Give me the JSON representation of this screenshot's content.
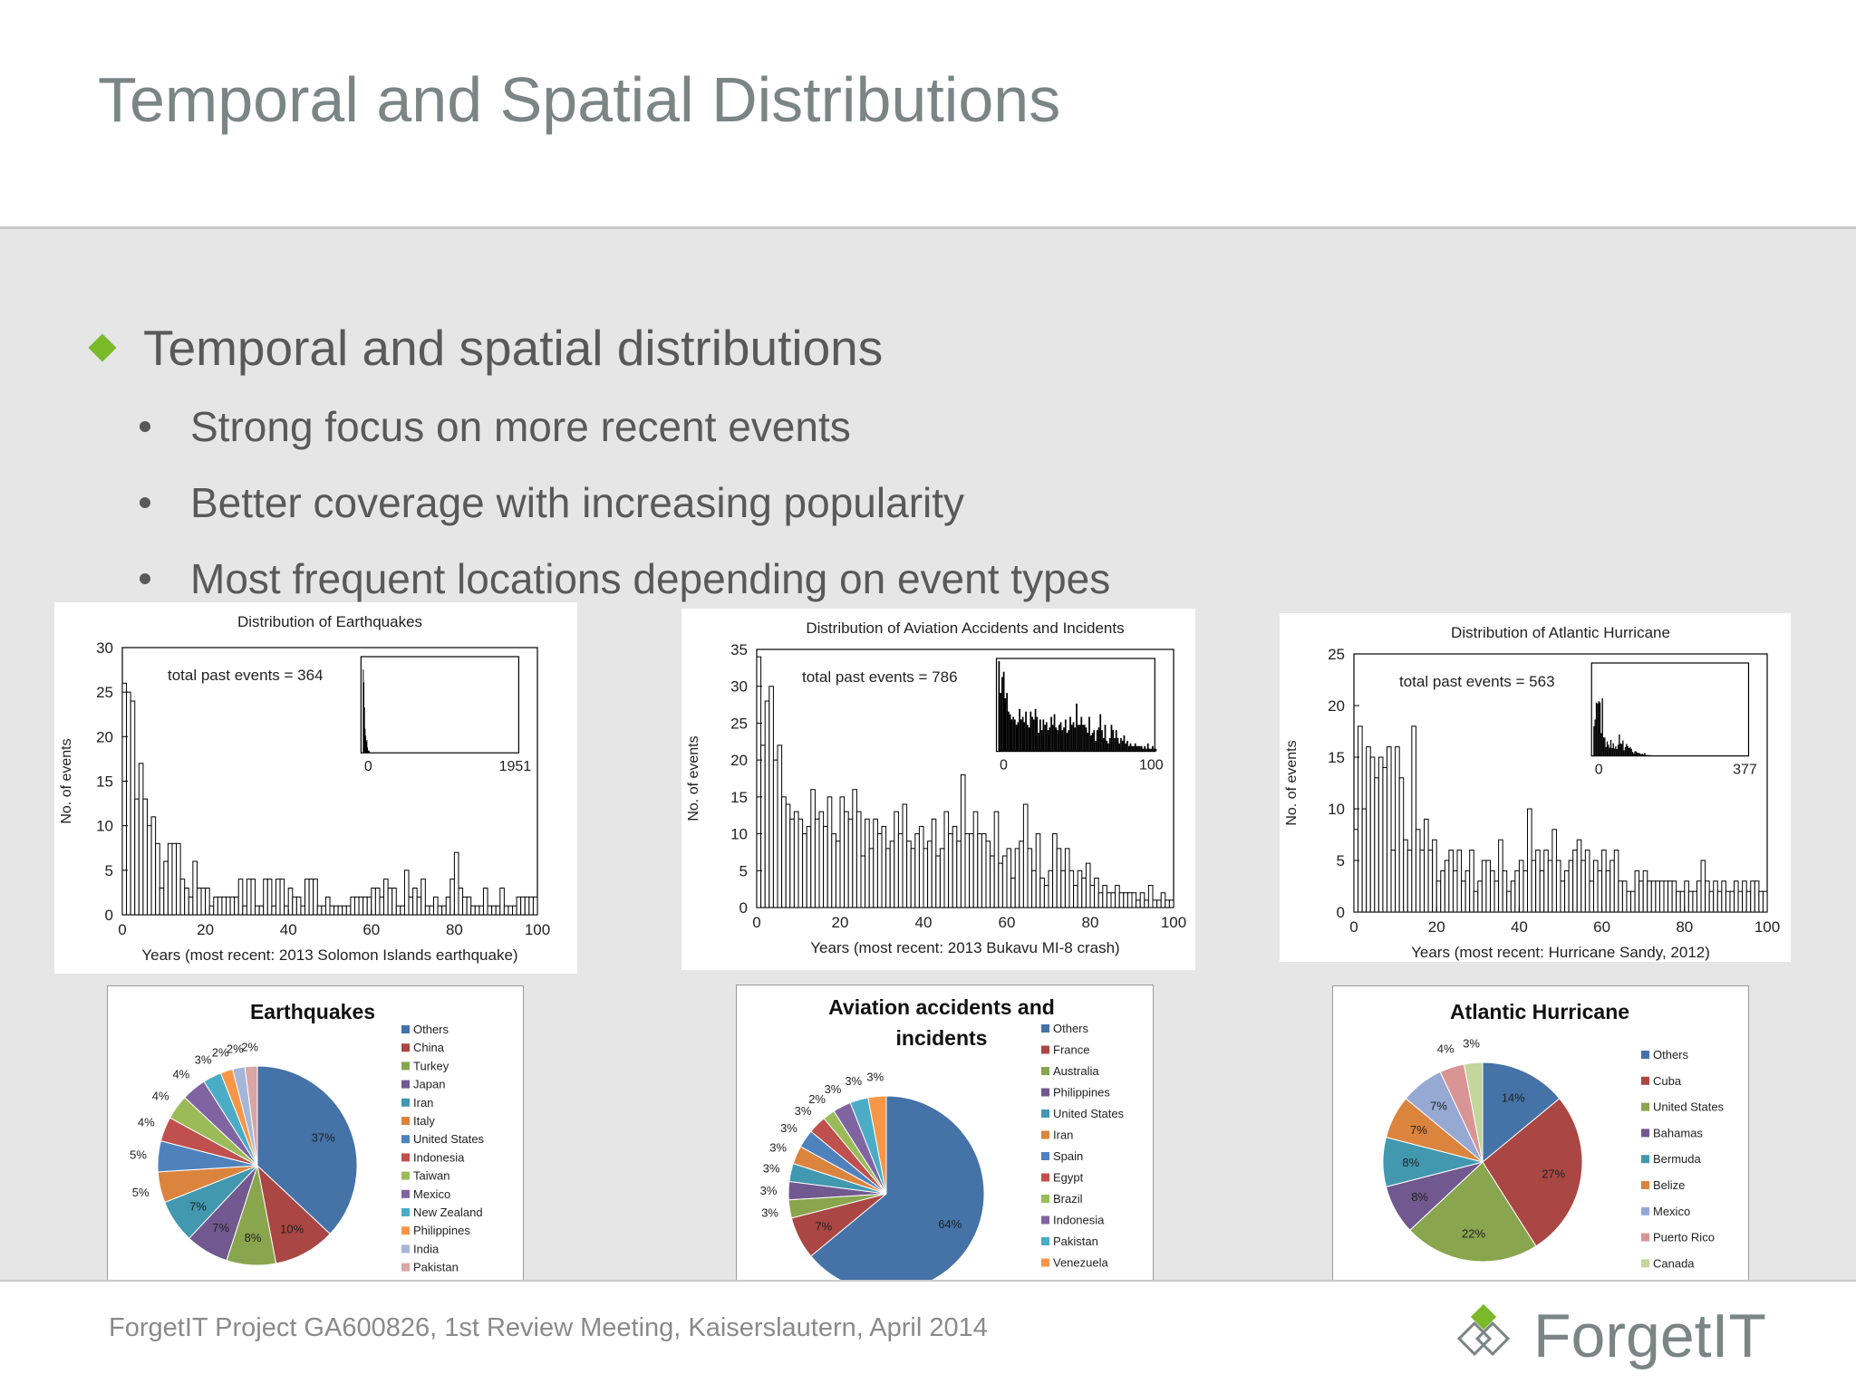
{
  "slide": {
    "title": "Temporal and Spatial Distributions",
    "bullet": "Temporal and spatial distributions",
    "subbullets": [
      "Strong focus on more recent events",
      "Better coverage with increasing popularity",
      "Most frequent locations depending on event types"
    ],
    "footer": "ForgetIT Project GA600826, 1st Review Meeting, Kaiserslautern, April 2014",
    "logo": "ForgetIT",
    "colors": {
      "accent": "#7ab929",
      "title": "#7a8584",
      "text": "#595959"
    }
  },
  "chart_data": [
    {
      "type": "bar",
      "title": "Distribution of Earthquakes",
      "xlabel": "Years (most recent: 2013 Solomon Islands earthquake)",
      "ylabel": "No. of events",
      "annotation": "total past events = 364",
      "xlim": [
        0,
        100
      ],
      "ylim": [
        0,
        30
      ],
      "xticks": [
        "0",
        "20",
        "40",
        "60",
        "80",
        "100"
      ],
      "yticks": [
        "0",
        "5",
        "10",
        "15",
        "20",
        "25",
        "30"
      ],
      "inset": {
        "xticks": [
          "0",
          "1951"
        ]
      },
      "values": [
        26,
        25,
        24,
        13,
        17,
        13,
        10,
        11,
        8,
        3,
        6,
        8,
        8,
        8,
        4,
        3,
        2,
        6,
        3,
        3,
        3,
        1,
        2,
        2,
        2,
        2,
        2,
        2,
        4,
        1,
        4,
        4,
        1,
        1,
        4,
        4,
        1,
        4,
        4,
        1,
        3,
        2,
        2,
        1,
        4,
        4,
        4,
        1,
        1,
        2,
        1,
        1,
        1,
        1,
        1,
        2,
        2,
        2,
        2,
        2,
        3,
        3,
        2,
        4,
        3,
        3,
        1,
        1,
        5,
        2,
        3,
        2,
        4,
        1,
        1,
        2,
        1,
        1,
        2,
        4,
        7,
        3,
        2,
        2,
        1,
        1,
        1,
        3,
        1,
        1,
        1,
        3,
        1,
        1,
        1,
        2,
        2,
        2,
        2,
        2
      ]
    },
    {
      "type": "bar",
      "title": "Distribution of Aviation Accidents and Incidents",
      "xlabel": "Years (most recent: 2013 Bukavu MI-8 crash)",
      "ylabel": "No. of events",
      "annotation": "total past events = 786",
      "xlim": [
        0,
        100
      ],
      "ylim": [
        0,
        35
      ],
      "xticks": [
        "0",
        "20",
        "40",
        "60",
        "80",
        "100"
      ],
      "yticks": [
        "0",
        "5",
        "10",
        "15",
        "20",
        "25",
        "30",
        "35"
      ],
      "inset": {
        "xticks": [
          "0",
          "100"
        ]
      },
      "values": [
        34,
        22,
        28,
        30,
        20,
        22,
        15,
        14,
        12,
        13,
        12,
        10,
        11,
        16,
        12,
        13,
        11,
        15,
        10,
        9,
        15,
        13,
        12,
        16,
        13,
        7,
        12,
        8,
        12,
        10,
        11,
        8,
        9,
        13,
        10,
        14,
        9,
        8,
        10,
        11,
        8,
        9,
        12,
        7,
        8,
        13,
        10,
        11,
        9,
        18,
        10,
        10,
        13,
        10,
        10,
        9,
        7,
        13,
        6,
        7,
        8,
        4,
        8,
        9,
        14,
        8,
        5,
        10,
        4,
        3,
        5,
        10,
        8,
        5,
        8,
        5,
        3,
        5,
        4,
        6,
        3,
        4,
        2,
        3,
        2,
        2,
        3,
        2,
        2,
        2,
        2,
        1,
        2,
        1,
        3,
        1,
        1,
        2,
        1,
        1
      ]
    },
    {
      "type": "bar",
      "title": "Distribution of Atlantic Hurricane",
      "xlabel": "Years (most recent: Hurricane Sandy, 2012)",
      "ylabel": "No. of events",
      "annotation": "total past events = 563",
      "xlim": [
        0,
        100
      ],
      "ylim": [
        0,
        25
      ],
      "xticks": [
        "0",
        "20",
        "40",
        "60",
        "80",
        "100"
      ],
      "yticks": [
        "0",
        "5",
        "10",
        "15",
        "20",
        "25"
      ],
      "inset": {
        "xticks": [
          "0",
          "377"
        ]
      },
      "values": [
        8,
        18,
        10,
        16,
        15,
        13,
        15,
        14,
        16,
        6,
        16,
        13,
        7,
        6,
        18,
        8,
        6,
        9,
        6,
        7,
        3,
        4,
        5,
        6,
        4,
        6,
        3,
        4,
        6,
        2,
        3,
        5,
        5,
        4,
        3,
        7,
        4,
        2,
        3,
        4,
        5,
        4,
        10,
        5,
        6,
        4,
        6,
        5,
        8,
        5,
        3,
        4,
        5,
        6,
        7,
        5,
        6,
        3,
        5,
        4,
        6,
        4,
        5,
        6,
        3,
        3,
        2,
        2,
        4,
        3,
        4,
        3,
        3,
        3,
        3,
        3,
        3,
        3,
        2,
        2,
        3,
        2,
        2,
        3,
        5,
        3,
        2,
        3,
        2,
        3,
        2,
        2,
        3,
        2,
        3,
        2,
        3,
        3,
        2,
        2
      ]
    },
    {
      "type": "pie",
      "title": "Earthquakes",
      "legend": "right",
      "labels": [
        "Others",
        "China",
        "Turkey",
        "Japan",
        "Iran",
        "Italy",
        "United States",
        "Indonesia",
        "Taiwan",
        "Mexico",
        "New Zealand",
        "Philippines",
        "India",
        "Pakistan"
      ],
      "values": [
        37,
        10,
        8,
        7,
        7,
        5,
        5,
        4,
        4,
        4,
        3,
        2,
        2,
        2
      ],
      "colors": [
        "#4572a7",
        "#aa4643",
        "#89a54e",
        "#71588f",
        "#4198af",
        "#db843d",
        "#4f81bd",
        "#c0504d",
        "#9bbb59",
        "#8064a2",
        "#4bacc6",
        "#f79646",
        "#a5b6d9",
        "#d9a5a5"
      ]
    },
    {
      "type": "pie",
      "title": "Aviation accidents and incidents",
      "legend": "right",
      "labels": [
        "Others",
        "France",
        "Australia",
        "Philippines",
        "United States",
        "Iran",
        "Spain",
        "Egypt",
        "Brazil",
        "Indonesia",
        "Pakistan",
        "Venezuela"
      ],
      "values": [
        64,
        7,
        3,
        3,
        3,
        3,
        3,
        3,
        2,
        3,
        3,
        3
      ],
      "colors": [
        "#4572a7",
        "#aa4643",
        "#89a54e",
        "#71588f",
        "#4198af",
        "#db843d",
        "#4f81bd",
        "#c0504d",
        "#9bbb59",
        "#8064a2",
        "#4bacc6",
        "#f79646"
      ]
    },
    {
      "type": "pie",
      "title": "Atlantic Hurricane",
      "legend": "right",
      "labels": [
        "Others",
        "Cuba",
        "United States",
        "Bahamas",
        "Bermuda",
        "Belize",
        "Mexico",
        "Puerto Rico",
        "Canada"
      ],
      "values": [
        14,
        27,
        22,
        8,
        8,
        7,
        7,
        4,
        3
      ],
      "colors": [
        "#4572a7",
        "#aa4643",
        "#89a54e",
        "#71588f",
        "#4198af",
        "#db843d",
        "#95a9d3",
        "#d99594",
        "#c3d69b"
      ]
    }
  ]
}
